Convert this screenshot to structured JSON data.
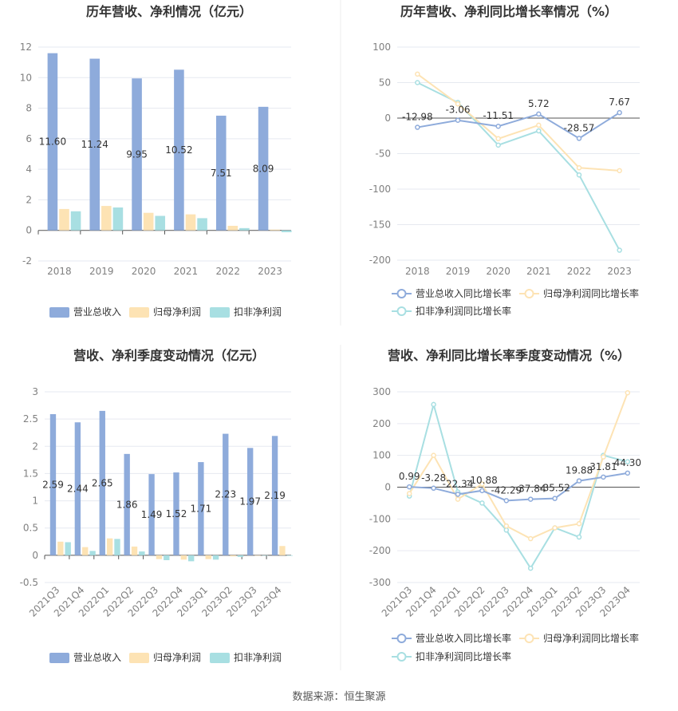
{
  "colors": {
    "revenue": "#8eabdb",
    "net_profit": "#fde3b4",
    "deducted_profit": "#a8dfe2",
    "grid": "#e6e9f0",
    "axis_text": "#808080",
    "title": "#333333"
  },
  "source": "数据来源：恒生聚源",
  "chart_data": [
    {
      "type": "bar",
      "title": "历年营收、净利情况（亿元）",
      "categories": [
        "2018",
        "2019",
        "2020",
        "2021",
        "2022",
        "2023"
      ],
      "ylim": [
        -2,
        12
      ],
      "yticks": [
        12,
        10,
        8,
        6,
        4,
        2,
        0,
        -2
      ],
      "series": [
        {
          "name": "营业总收入",
          "values": [
            11.6,
            11.24,
            9.95,
            10.52,
            7.51,
            8.09
          ],
          "labels": [
            "11.60",
            "11.24",
            "9.95",
            "10.52",
            "7.51",
            "8.09"
          ]
        },
        {
          "name": "归母净利润",
          "values": [
            1.4,
            1.6,
            1.15,
            1.05,
            0.3,
            0.05
          ]
        },
        {
          "name": "扣非净利润",
          "values": [
            1.25,
            1.5,
            0.95,
            0.8,
            0.15,
            -0.12
          ]
        }
      ],
      "legend": "bottom",
      "grid": true
    },
    {
      "type": "line",
      "title": "历年营收、净利同比增长率情况（%）",
      "categories": [
        "2018",
        "2019",
        "2020",
        "2021",
        "2022",
        "2023"
      ],
      "ylim": [
        -200,
        100
      ],
      "yticks": [
        100,
        50,
        0,
        -50,
        -100,
        -150,
        -200
      ],
      "series": [
        {
          "name": "营业总收入同比增长率",
          "values": [
            -12.98,
            -3.06,
            -11.51,
            5.72,
            -28.57,
            7.67
          ],
          "labels": [
            "-12.98",
            "-3.06",
            "-11.51",
            "5.72",
            "-28.57",
            "7.67"
          ]
        },
        {
          "name": "归母净利润同比增长率",
          "values": [
            62,
            20,
            -29,
            -10,
            -70,
            -74
          ]
        },
        {
          "name": "扣非净利润同比增长率",
          "values": [
            50,
            22,
            -38,
            -18,
            -80,
            -186
          ]
        }
      ],
      "legend": "bottom",
      "grid": true
    },
    {
      "type": "bar",
      "title": "营收、净利季度变动情况（亿元）",
      "categories": [
        "2021Q3",
        "2021Q4",
        "2022Q1",
        "2022Q2",
        "2022Q3",
        "2022Q4",
        "2023Q1",
        "2023Q2",
        "2023Q3",
        "2023Q4"
      ],
      "ylim": [
        -0.5,
        3
      ],
      "yticks": [
        3,
        2.5,
        2,
        1.5,
        1,
        0.5,
        0,
        -0.5
      ],
      "series": [
        {
          "name": "营业总收入",
          "values": [
            2.59,
            2.44,
            2.65,
            1.86,
            1.49,
            1.52,
            1.71,
            2.23,
            1.97,
            2.19
          ],
          "labels": [
            "2.59",
            "2.44",
            "2.65",
            "1.86",
            "1.49",
            "1.52",
            "1.71",
            "2.23",
            "1.97",
            "2.19"
          ]
        },
        {
          "name": "归母净利润",
          "values": [
            0.25,
            0.15,
            0.31,
            0.16,
            -0.07,
            -0.08,
            -0.07,
            -0.02,
            0.0,
            0.17
          ]
        },
        {
          "name": "扣非净利润",
          "values": [
            0.24,
            0.08,
            0.3,
            0.07,
            -0.09,
            -0.11,
            -0.08,
            -0.03,
            0.0,
            -0.01
          ]
        }
      ],
      "legend": "bottom",
      "grid": true
    },
    {
      "type": "line",
      "title": "营收、净利同比增长率季度变动情况（%）",
      "categories": [
        "2021Q3",
        "2021Q4",
        "2022Q1",
        "2022Q2",
        "2022Q3",
        "2022Q4",
        "2023Q1",
        "2023Q2",
        "2023Q3",
        "2023Q4"
      ],
      "ylim": [
        -300,
        300
      ],
      "yticks": [
        300,
        200,
        100,
        0,
        -100,
        -200,
        -300
      ],
      "series": [
        {
          "name": "营业总收入同比增长率",
          "values": [
            0.99,
            -3.28,
            -22.34,
            -10.88,
            -42.29,
            -37.84,
            -35.52,
            19.88,
            31.81,
            44.3
          ],
          "labels": [
            "0.99",
            "-3.28",
            "-22.34",
            "-10.88",
            "-42.29",
            "-37.84",
            "-35.52",
            "19.88",
            "31.81",
            "44.30"
          ]
        },
        {
          "name": "归母净利润同比增长率",
          "values": [
            -20,
            100,
            -38,
            10,
            -122,
            -162,
            -128,
            -115,
            95,
            297
          ]
        },
        {
          "name": "扣非净利润同比增长率",
          "values": [
            -28,
            260,
            -15,
            -50,
            -135,
            -255,
            -128,
            -157,
            100,
            80
          ]
        }
      ],
      "legend": "bottom",
      "grid": true
    }
  ]
}
